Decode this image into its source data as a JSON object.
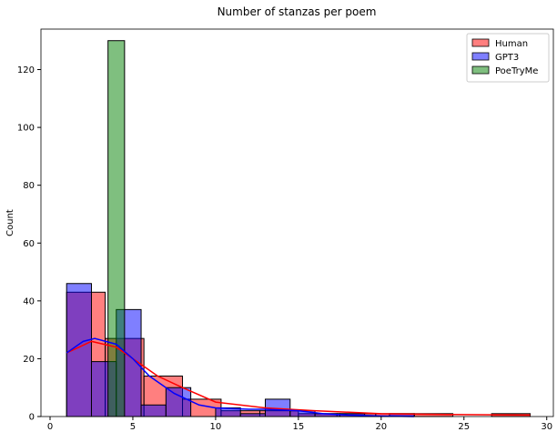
{
  "chart_data": {
    "type": "histogram",
    "title": "Number of stanzas per poem",
    "ylabel": "Count",
    "xlim": [
      -0.55,
      30.4
    ],
    "xticks": [
      0,
      5,
      10,
      15,
      20,
      25,
      30
    ],
    "ylim": [
      0,
      134
    ],
    "yticks": [
      0,
      20,
      40,
      60,
      80,
      100,
      120
    ],
    "legend": "upper right",
    "series": [
      {
        "name": "Human",
        "color": "#ff0000",
        "bins": [
          1,
          3.33,
          5.67,
          8,
          10.33,
          12.67,
          15,
          17.33,
          19.67,
          22,
          24.33,
          26.67,
          29
        ],
        "values": [
          43,
          27,
          14,
          6,
          2,
          2,
          1,
          1,
          1,
          1,
          0,
          1
        ],
        "kde": {
          "x": [
            1,
            2.5,
            4,
            5,
            6.5,
            8,
            10,
            13,
            16,
            20,
            24,
            29
          ],
          "y": [
            22,
            26,
            24,
            20,
            14,
            10,
            5,
            3,
            2,
            1,
            0.7,
            0.5
          ]
        }
      },
      {
        "name": "GPT3",
        "color": "#0000ff",
        "bins": [
          1,
          2.5,
          4,
          5.5,
          7,
          8.5,
          10,
          11.5,
          13,
          14.5,
          16,
          17.5,
          19,
          20.5,
          22
        ],
        "values": [
          46,
          19,
          37,
          4,
          10,
          0,
          3,
          1,
          6,
          2,
          1,
          1,
          0,
          1
        ],
        "kde": {
          "x": [
            1,
            2,
            2.7,
            4,
            5,
            6,
            7.5,
            9,
            10,
            12,
            13,
            15,
            16.5,
            18,
            20,
            22
          ],
          "y": [
            22,
            26,
            27,
            25,
            20,
            14,
            8,
            4,
            3,
            2.5,
            2.5,
            2,
            1,
            0.5,
            0.2,
            0
          ]
        }
      },
      {
        "name": "PoeTryMe",
        "color": "#008000",
        "bins": [
          3.5,
          4.5
        ],
        "values": [
          130
        ]
      }
    ]
  }
}
